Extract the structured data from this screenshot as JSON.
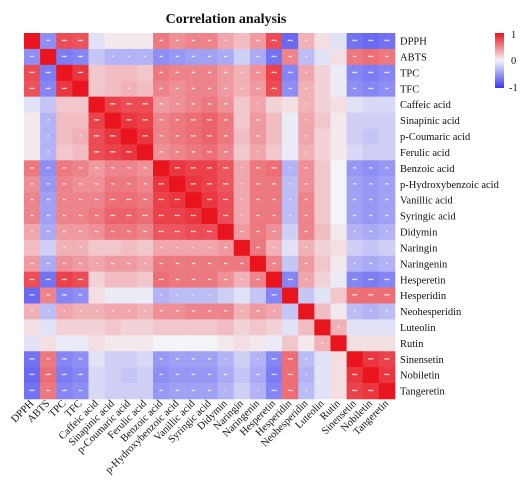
{
  "chart_data": {
    "type": "heatmap",
    "title": "Correlation analysis",
    "variables": [
      "DPPH",
      "ABTS",
      "TPC",
      "TFC",
      "Caffeic acid",
      "Sinapinic acid",
      "p-Coumaric acid",
      "Ferulic acid",
      "Benzoic acid",
      "p-Hydroxybenzoic acid",
      "Vanillic acid",
      "Syringic acid",
      "Didymin",
      "Naringin",
      "Naringenin",
      "Hesperetin",
      "Hesperidin",
      "Neohesperidin",
      "Luteolin",
      "Rutin",
      "Sinensetin",
      "Nobiletin",
      "Tangeretin"
    ],
    "values": [
      [
        1.0,
        -0.55,
        0.75,
        0.72,
        -0.1,
        0.05,
        0.05,
        0.05,
        0.55,
        0.45,
        0.5,
        0.5,
        0.35,
        0.25,
        0.4,
        0.75,
        -0.75,
        0.3,
        0.1,
        -0.1,
        -0.7,
        -0.75,
        -0.7
      ],
      [
        -0.55,
        1.0,
        -0.65,
        -0.6,
        -0.25,
        -0.35,
        -0.35,
        -0.35,
        -0.55,
        -0.5,
        -0.45,
        -0.45,
        -0.4,
        -0.2,
        -0.4,
        -0.7,
        0.5,
        -0.3,
        -0.1,
        0.1,
        0.55,
        0.6,
        0.55
      ],
      [
        0.75,
        -0.65,
        1.0,
        0.85,
        0.2,
        0.25,
        0.25,
        0.2,
        0.55,
        0.5,
        0.5,
        0.5,
        0.4,
        0.3,
        0.45,
        0.8,
        -0.6,
        0.35,
        0.15,
        -0.05,
        -0.6,
        -0.65,
        -0.6
      ],
      [
        0.72,
        -0.6,
        0.85,
        1.0,
        0.2,
        0.25,
        0.3,
        0.25,
        0.5,
        0.45,
        0.5,
        0.5,
        0.4,
        0.3,
        0.4,
        0.75,
        -0.55,
        0.3,
        0.15,
        -0.05,
        -0.55,
        -0.6,
        -0.55
      ],
      [
        -0.1,
        -0.25,
        0.2,
        0.2,
        1.0,
        0.8,
        0.75,
        0.75,
        0.4,
        0.45,
        0.5,
        0.55,
        0.45,
        0.2,
        0.35,
        0.15,
        0.1,
        0.3,
        0.15,
        0.1,
        -0.1,
        -0.15,
        -0.15
      ],
      [
        0.05,
        -0.35,
        0.25,
        0.25,
        0.8,
        1.0,
        0.85,
        0.8,
        0.5,
        0.55,
        0.6,
        0.65,
        0.55,
        0.2,
        0.4,
        0.25,
        -0.05,
        0.35,
        0.2,
        0.05,
        -0.2,
        -0.2,
        -0.2
      ],
      [
        0.05,
        -0.35,
        0.25,
        0.3,
        0.75,
        0.85,
        1.0,
        0.85,
        0.5,
        0.55,
        0.6,
        0.65,
        0.55,
        0.25,
        0.4,
        0.25,
        -0.05,
        0.35,
        0.15,
        0.05,
        -0.2,
        -0.25,
        -0.2
      ],
      [
        0.05,
        -0.35,
        0.2,
        0.25,
        0.75,
        0.8,
        0.85,
        1.0,
        0.45,
        0.5,
        0.55,
        0.6,
        0.5,
        0.2,
        0.35,
        0.2,
        -0.05,
        0.3,
        0.15,
        0.05,
        -0.15,
        -0.2,
        -0.2
      ],
      [
        0.55,
        -0.55,
        0.55,
        0.5,
        0.4,
        0.5,
        0.5,
        0.45,
        1.0,
        0.85,
        0.8,
        0.8,
        0.7,
        0.35,
        0.55,
        0.6,
        -0.35,
        0.45,
        0.2,
        0.0,
        -0.5,
        -0.55,
        -0.5
      ],
      [
        0.45,
        -0.5,
        0.5,
        0.45,
        0.45,
        0.55,
        0.55,
        0.5,
        0.85,
        1.0,
        0.85,
        0.8,
        0.7,
        0.35,
        0.55,
        0.55,
        -0.3,
        0.45,
        0.2,
        0.0,
        -0.45,
        -0.5,
        -0.45
      ],
      [
        0.5,
        -0.45,
        0.5,
        0.5,
        0.5,
        0.6,
        0.6,
        0.55,
        0.8,
        0.85,
        1.0,
        0.85,
        0.75,
        0.35,
        0.55,
        0.55,
        -0.3,
        0.5,
        0.2,
        0.0,
        -0.45,
        -0.5,
        -0.45
      ],
      [
        0.5,
        -0.45,
        0.5,
        0.5,
        0.55,
        0.65,
        0.65,
        0.6,
        0.8,
        0.8,
        0.85,
        1.0,
        0.75,
        0.35,
        0.55,
        0.55,
        -0.3,
        0.5,
        0.2,
        0.0,
        -0.45,
        -0.5,
        -0.45
      ],
      [
        0.35,
        -0.4,
        0.4,
        0.4,
        0.45,
        0.55,
        0.55,
        0.5,
        0.7,
        0.7,
        0.75,
        0.75,
        1.0,
        0.4,
        0.55,
        0.45,
        -0.2,
        0.5,
        0.25,
        0.05,
        -0.35,
        -0.4,
        -0.35
      ],
      [
        0.25,
        -0.2,
        0.3,
        0.3,
        0.2,
        0.2,
        0.25,
        0.2,
        0.35,
        0.35,
        0.35,
        0.35,
        0.4,
        1.0,
        0.55,
        0.3,
        -0.1,
        0.3,
        0.15,
        0.1,
        -0.2,
        -0.25,
        -0.2
      ],
      [
        0.4,
        -0.4,
        0.45,
        0.4,
        0.35,
        0.4,
        0.4,
        0.35,
        0.55,
        0.55,
        0.55,
        0.55,
        0.55,
        0.55,
        1.0,
        0.5,
        -0.25,
        0.4,
        0.2,
        0.05,
        -0.35,
        -0.4,
        -0.35
      ],
      [
        0.75,
        -0.7,
        0.8,
        0.75,
        0.15,
        0.25,
        0.25,
        0.2,
        0.6,
        0.55,
        0.55,
        0.55,
        0.45,
        0.3,
        0.5,
        1.0,
        -0.6,
        0.35,
        0.15,
        -0.05,
        -0.6,
        -0.65,
        -0.6
      ],
      [
        -0.75,
        0.5,
        -0.6,
        -0.55,
        0.1,
        -0.05,
        -0.05,
        -0.05,
        -0.35,
        -0.3,
        -0.3,
        -0.3,
        -0.2,
        -0.1,
        -0.25,
        -0.6,
        1.0,
        -0.25,
        -0.1,
        0.2,
        0.6,
        0.6,
        0.6
      ],
      [
        0.3,
        -0.3,
        0.35,
        0.3,
        0.3,
        0.35,
        0.35,
        0.3,
        0.45,
        0.45,
        0.5,
        0.5,
        0.5,
        0.3,
        0.4,
        0.35,
        -0.25,
        1.0,
        0.25,
        0.05,
        -0.3,
        -0.35,
        -0.3
      ],
      [
        0.1,
        -0.1,
        0.15,
        0.15,
        0.15,
        0.2,
        0.15,
        0.15,
        0.2,
        0.2,
        0.2,
        0.2,
        0.25,
        0.15,
        0.2,
        0.15,
        -0.1,
        0.25,
        1.0,
        0.3,
        -0.1,
        -0.1,
        -0.1
      ],
      [
        -0.1,
        0.1,
        -0.05,
        -0.05,
        0.1,
        0.05,
        0.05,
        0.05,
        0.0,
        0.0,
        0.0,
        0.0,
        0.05,
        0.1,
        0.05,
        -0.05,
        0.2,
        0.05,
        0.3,
        1.0,
        0.1,
        0.1,
        0.1
      ],
      [
        -0.7,
        0.55,
        -0.6,
        -0.55,
        -0.1,
        -0.2,
        -0.2,
        -0.15,
        -0.5,
        -0.45,
        -0.45,
        -0.45,
        -0.35,
        -0.2,
        -0.35,
        -0.6,
        0.6,
        -0.3,
        -0.1,
        0.1,
        1.0,
        0.85,
        0.8
      ],
      [
        -0.75,
        0.6,
        -0.65,
        -0.6,
        -0.15,
        -0.2,
        -0.25,
        -0.2,
        -0.55,
        -0.5,
        -0.5,
        -0.5,
        -0.4,
        -0.25,
        -0.4,
        -0.65,
        0.6,
        -0.35,
        -0.1,
        0.1,
        0.85,
        1.0,
        0.85
      ],
      [
        -0.7,
        0.55,
        -0.6,
        -0.55,
        -0.15,
        -0.2,
        -0.2,
        -0.2,
        -0.5,
        -0.45,
        -0.45,
        -0.45,
        -0.35,
        -0.2,
        -0.35,
        -0.6,
        0.6,
        -0.3,
        -0.1,
        0.1,
        0.8,
        0.85,
        1.0
      ]
    ],
    "significance_marks": [
      "*",
      "**",
      "***"
    ],
    "color_scale": {
      "min": -1,
      "mid": 0,
      "max": 1,
      "low_color": "#3b3bf0",
      "mid_color": "#f4f4f8",
      "high_color": "#e8141e"
    },
    "legend_ticks": [
      "1",
      "0",
      "-1"
    ],
    "legend_placement": "top-right"
  }
}
